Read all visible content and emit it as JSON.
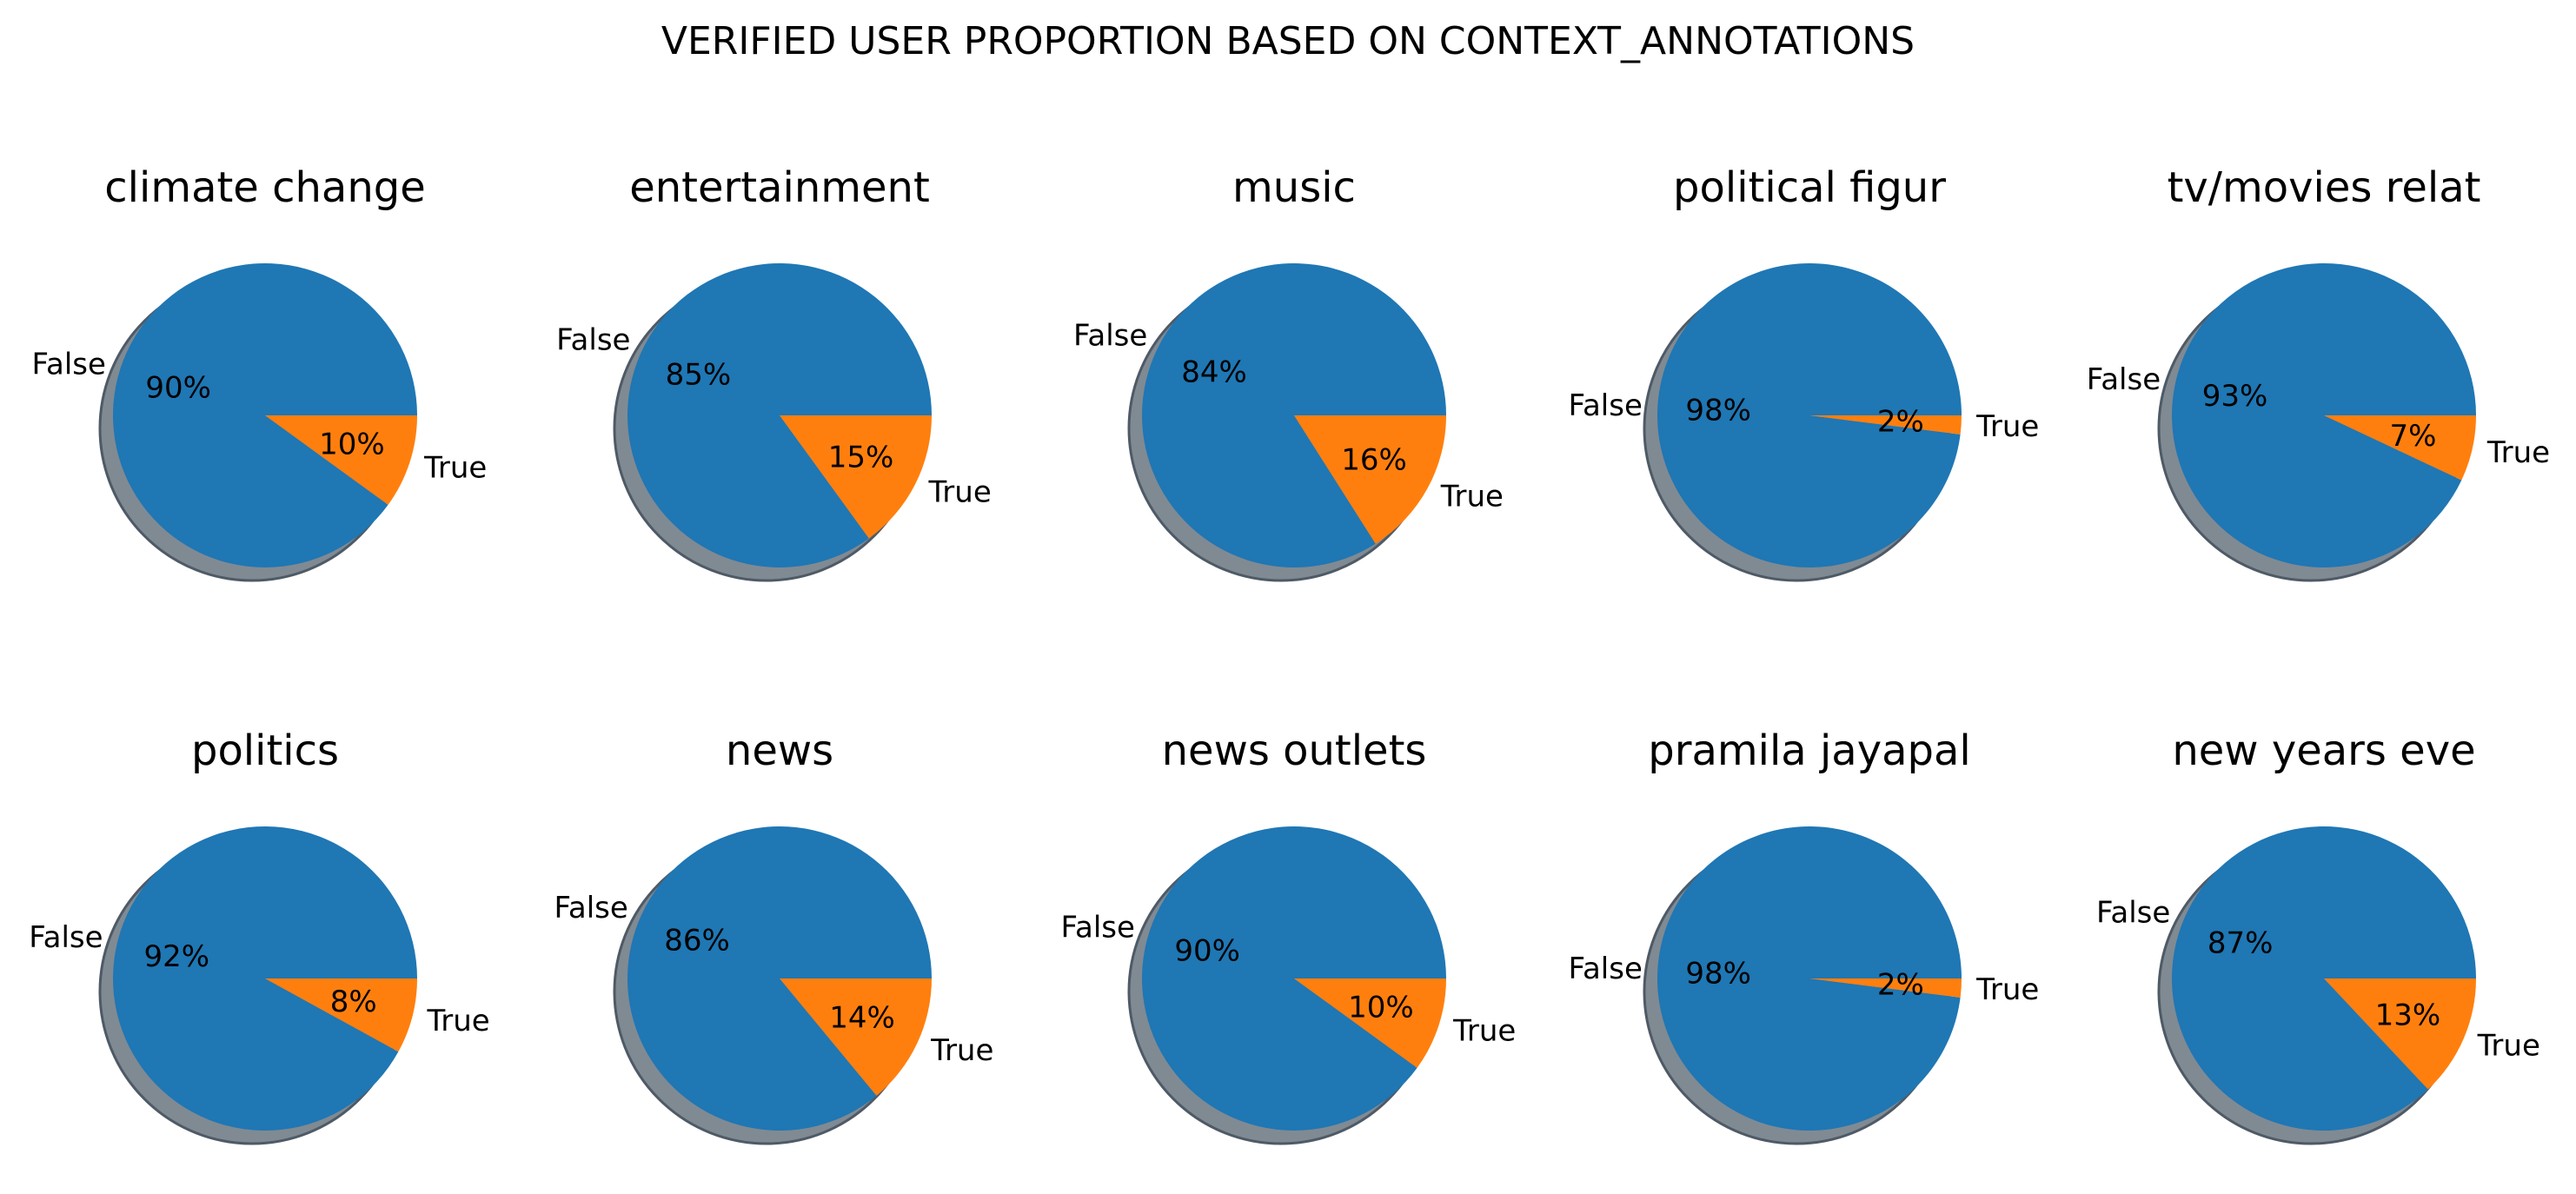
{
  "colors": {
    "false": "#1f77b4",
    "true": "#ff7f0e",
    "shadow": "#808a93",
    "shadow_edge": "#4e5a66"
  },
  "chart_data": {
    "type": "pie",
    "title": "VERIFIED USER PROPORTION BASED ON CONTEXT_ANNOTATIONS",
    "shadow": true,
    "labels": [
      "False",
      "True"
    ],
    "charts": [
      {
        "title": "climate change",
        "false": 90,
        "true": 10,
        "false_label": "90%",
        "true_label": "10%"
      },
      {
        "title": "entertainment",
        "false": 85,
        "true": 15,
        "false_label": "85%",
        "true_label": "15%"
      },
      {
        "title": "music",
        "false": 84,
        "true": 16,
        "false_label": "84%",
        "true_label": "16%"
      },
      {
        "title": "political figur",
        "false": 98,
        "true": 2,
        "false_label": "98%",
        "true_label": "2%"
      },
      {
        "title": "tv/movies relat",
        "false": 93,
        "true": 7,
        "false_label": "93%",
        "true_label": "7%"
      },
      {
        "title": "politics",
        "false": 92,
        "true": 8,
        "false_label": "92%",
        "true_label": "8%"
      },
      {
        "title": "news",
        "false": 86,
        "true": 14,
        "false_label": "86%",
        "true_label": "14%"
      },
      {
        "title": "news outlets",
        "false": 90,
        "true": 10,
        "false_label": "90%",
        "true_label": "10%"
      },
      {
        "title": "pramila jayapal",
        "false": 98,
        "true": 2,
        "false_label": "98%",
        "true_label": "2%"
      },
      {
        "title": "new years eve",
        "false": 87,
        "true": 13,
        "false_label": "87%",
        "true_label": "13%"
      }
    ]
  }
}
